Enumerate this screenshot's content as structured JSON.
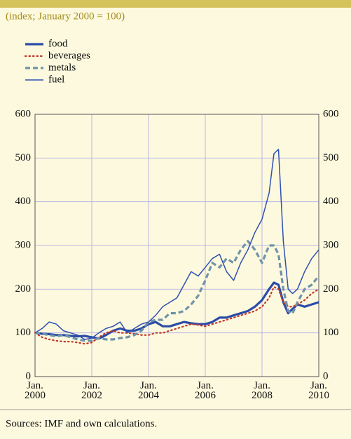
{
  "chart_data": {
    "type": "line",
    "subtitle": "(index; January 2000 = 100)",
    "source": "Sources: IMF and own calculations.",
    "x": [
      2000,
      2000.25,
      2000.5,
      2000.75,
      2001,
      2001.25,
      2001.5,
      2001.75,
      2002,
      2002.25,
      2002.5,
      2002.75,
      2003,
      2003.25,
      2003.5,
      2003.75,
      2004,
      2004.25,
      2004.5,
      2004.75,
      2005,
      2005.25,
      2005.5,
      2005.75,
      2006,
      2006.25,
      2006.5,
      2006.75,
      2007,
      2007.25,
      2007.5,
      2007.75,
      2008,
      2008.25,
      2008.42,
      2008.58,
      2008.75,
      2008.92,
      2009.08,
      2009.25,
      2009.5,
      2009.75,
      2010
    ],
    "series": [
      {
        "name": "food",
        "color": "#2b4ba8",
        "width": 3.2,
        "style": "solid",
        "values": [
          100,
          98,
          97,
          95,
          95,
          93,
          92,
          93,
          90,
          87,
          95,
          105,
          110,
          105,
          105,
          110,
          120,
          125,
          115,
          115,
          120,
          125,
          122,
          120,
          120,
          125,
          135,
          135,
          140,
          145,
          150,
          160,
          175,
          200,
          215,
          210,
          170,
          145,
          155,
          165,
          160,
          165,
          170
        ]
      },
      {
        "name": "beverages",
        "color": "#c0392b",
        "width": 2.2,
        "style": "dotted",
        "values": [
          100,
          90,
          85,
          82,
          80,
          80,
          78,
          75,
          78,
          90,
          100,
          105,
          100,
          100,
          98,
          95,
          95,
          100,
          100,
          105,
          110,
          115,
          120,
          118,
          115,
          120,
          125,
          130,
          135,
          140,
          145,
          150,
          160,
          180,
          205,
          200,
          170,
          160,
          160,
          165,
          175,
          190,
          200
        ]
      },
      {
        "name": "metals",
        "color": "#6f93a8",
        "width": 3.2,
        "style": "dashed",
        "values": [
          100,
          98,
          95,
          92,
          95,
          90,
          85,
          82,
          82,
          88,
          85,
          85,
          88,
          90,
          95,
          105,
          125,
          130,
          130,
          145,
          145,
          150,
          165,
          185,
          220,
          260,
          250,
          270,
          260,
          290,
          310,
          290,
          260,
          300,
          300,
          280,
          200,
          150,
          145,
          170,
          200,
          210,
          230
        ]
      },
      {
        "name": "fuel",
        "color": "#3050b0",
        "width": 1.5,
        "style": "solid",
        "values": [
          100,
          110,
          125,
          120,
          105,
          100,
          95,
          85,
          88,
          100,
          110,
          115,
          125,
          100,
          110,
          120,
          125,
          140,
          160,
          170,
          180,
          210,
          240,
          230,
          250,
          270,
          280,
          240,
          220,
          260,
          290,
          330,
          360,
          420,
          510,
          520,
          310,
          200,
          190,
          200,
          240,
          270,
          290
        ]
      }
    ],
    "xlim": [
      2000,
      2010
    ],
    "xticks": [
      {
        "value": 2000,
        "label": "Jan. 2000"
      },
      {
        "value": 2002,
        "label": "Jan. 2002"
      },
      {
        "value": 2004,
        "label": "Jan. 2004"
      },
      {
        "value": 2006,
        "label": "Jan. 2006"
      },
      {
        "value": 2008,
        "label": "Jan. 2008"
      },
      {
        "value": 2010,
        "label": "Jan. 2010"
      }
    ],
    "ylim": [
      0,
      600
    ],
    "yticks": [
      0,
      100,
      200,
      300,
      400,
      500,
      600
    ],
    "y2lim": [
      0,
      600
    ],
    "y2ticks": [
      0,
      100,
      200,
      300,
      400,
      500,
      600
    ],
    "grid": true
  }
}
